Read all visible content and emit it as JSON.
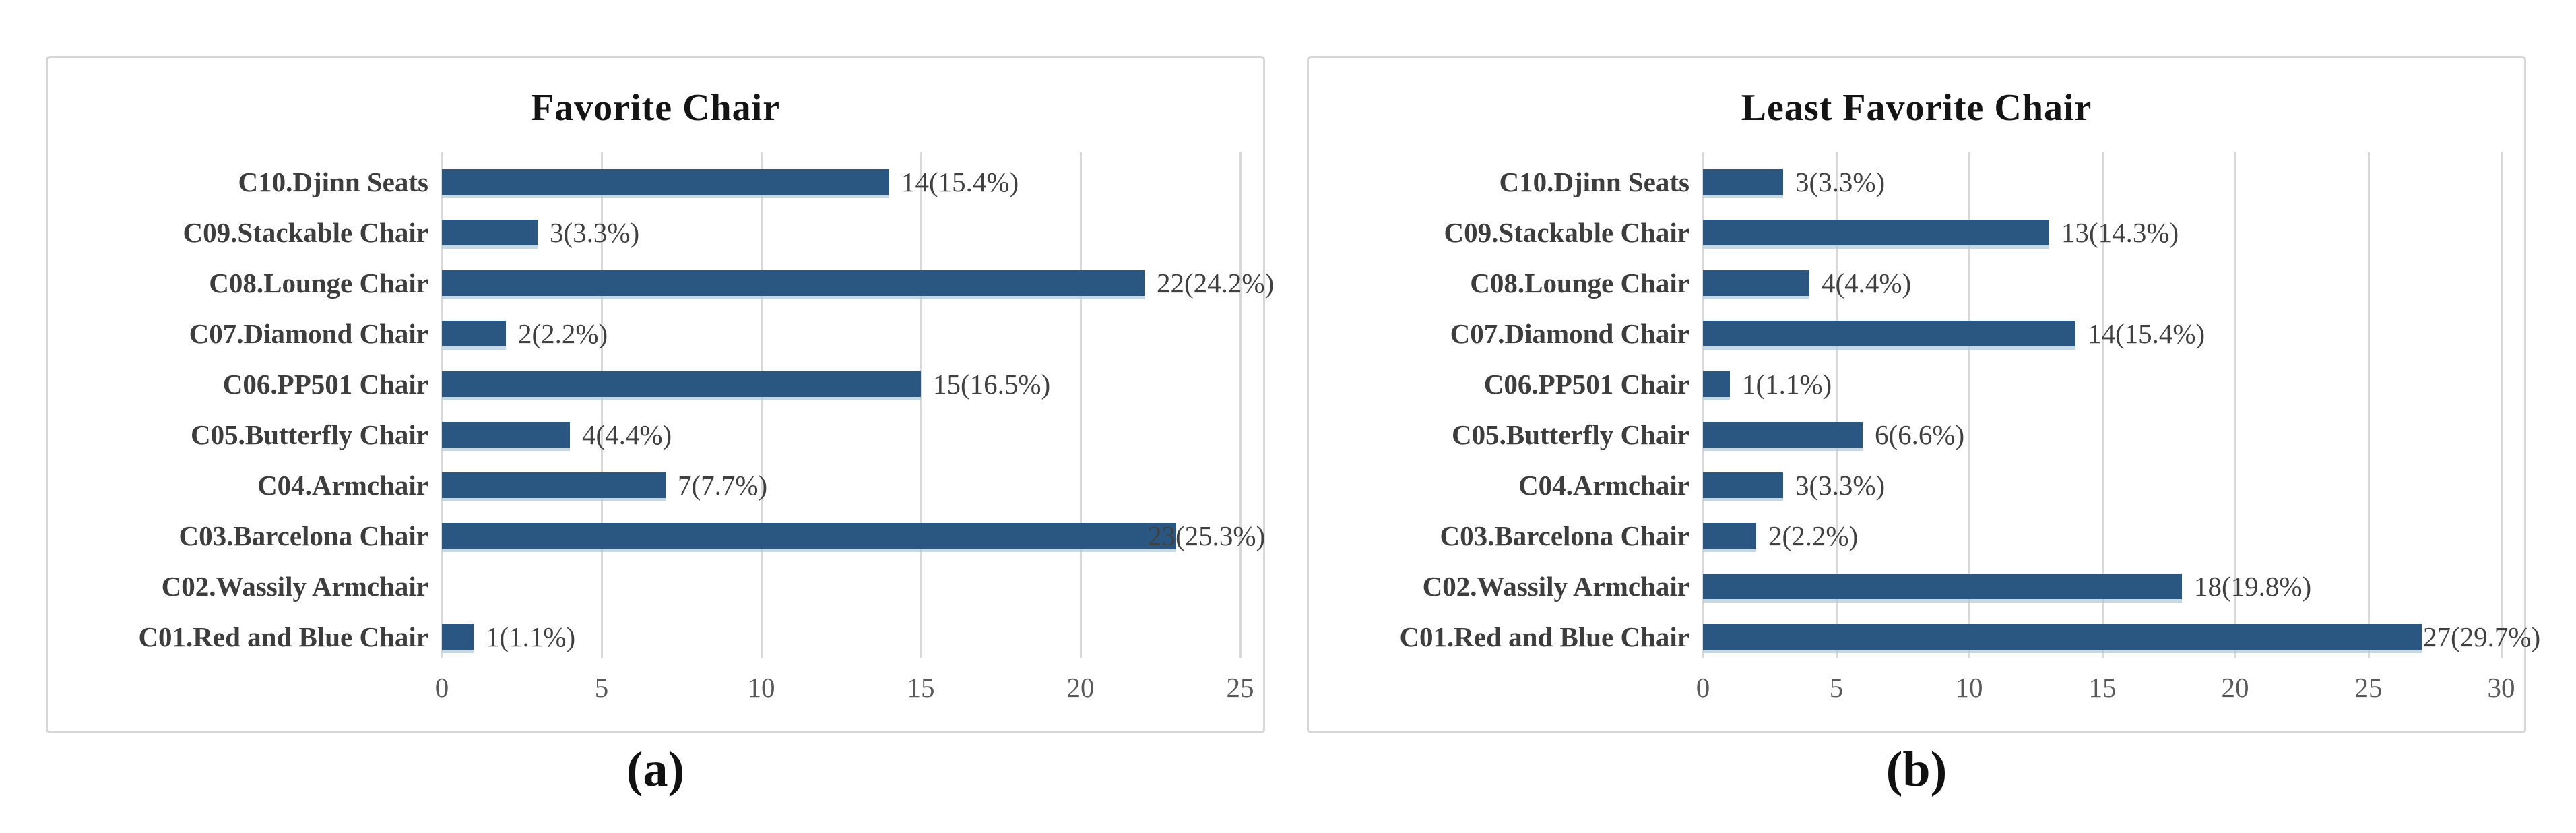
{
  "figure": {
    "captions": {
      "a": "(a)",
      "b": "(b)"
    }
  },
  "colors": {
    "bar": "#2a5782",
    "gridline": "#d9d9d9",
    "panel_border": "#d7d7d7",
    "title_text": "#141414",
    "category_text": "#3d3d3d",
    "value_text": "#404040",
    "tick_text": "#595959"
  },
  "chart_data": [
    {
      "type": "bar",
      "orientation": "horizontal",
      "title": "Favorite Chair",
      "xlabel": "",
      "ylabel": "",
      "xlim": [
        0,
        25
      ],
      "xticks": [
        "0",
        "5",
        "10",
        "15",
        "20",
        "25"
      ],
      "grid": true,
      "legend": "none",
      "rows": [
        {
          "category": "C10.Djinn Seats",
          "value": 14,
          "label": "14(15.4%)"
        },
        {
          "category": "C09.Stackable Chair",
          "value": 3,
          "label": "3(3.3%)"
        },
        {
          "category": "C08.Lounge Chair",
          "value": 22,
          "label": "22(24.2%)"
        },
        {
          "category": "C07.Diamond Chair",
          "value": 2,
          "label": "2(2.2%)"
        },
        {
          "category": "C06.PP501 Chair",
          "value": 15,
          "label": "15(16.5%)"
        },
        {
          "category": "C05.Butterfly Chair",
          "value": 4,
          "label": "4(4.4%)"
        },
        {
          "category": "C04.Armchair",
          "value": 7,
          "label": "7(7.7%)"
        },
        {
          "category": "C03.Barcelona Chair",
          "value": 23,
          "label": "23(25.3%)",
          "label_dx": -42
        },
        {
          "category": "C02.Wassily Armchair",
          "value": 0,
          "label": ""
        },
        {
          "category": "C01.Red and Blue Chair",
          "value": 1,
          "label": "1(1.1%)"
        }
      ]
    },
    {
      "type": "bar",
      "orientation": "horizontal",
      "title": "Least Favorite Chair",
      "xlabel": "",
      "ylabel": "",
      "xlim": [
        0,
        30
      ],
      "xticks": [
        "0",
        "5",
        "10",
        "15",
        "20",
        "25",
        "30"
      ],
      "grid": true,
      "legend": "none",
      "rows": [
        {
          "category": "C10.Djinn Seats",
          "value": 3,
          "label": "3(3.3%)"
        },
        {
          "category": "C09.Stackable Chair",
          "value": 13,
          "label": "13(14.3%)"
        },
        {
          "category": "C08.Lounge Chair",
          "value": 4,
          "label": "4(4.4%)"
        },
        {
          "category": "C07.Diamond Chair",
          "value": 14,
          "label": "14(15.4%)"
        },
        {
          "category": "C06.PP501 Chair",
          "value": 1,
          "label": "1(1.1%)"
        },
        {
          "category": "C05.Butterfly Chair",
          "value": 6,
          "label": "6(6.6%)"
        },
        {
          "category": "C04.Armchair",
          "value": 3,
          "label": "3(3.3%)"
        },
        {
          "category": "C03.Barcelona Chair",
          "value": 2,
          "label": "2(2.2%)"
        },
        {
          "category": "C02.Wassily Armchair",
          "value": 18,
          "label": "18(19.8%)"
        },
        {
          "category": "C01.Red and Blue Chair",
          "value": 27,
          "label": "27(29.7%)",
          "label_dx": 2
        }
      ]
    }
  ]
}
